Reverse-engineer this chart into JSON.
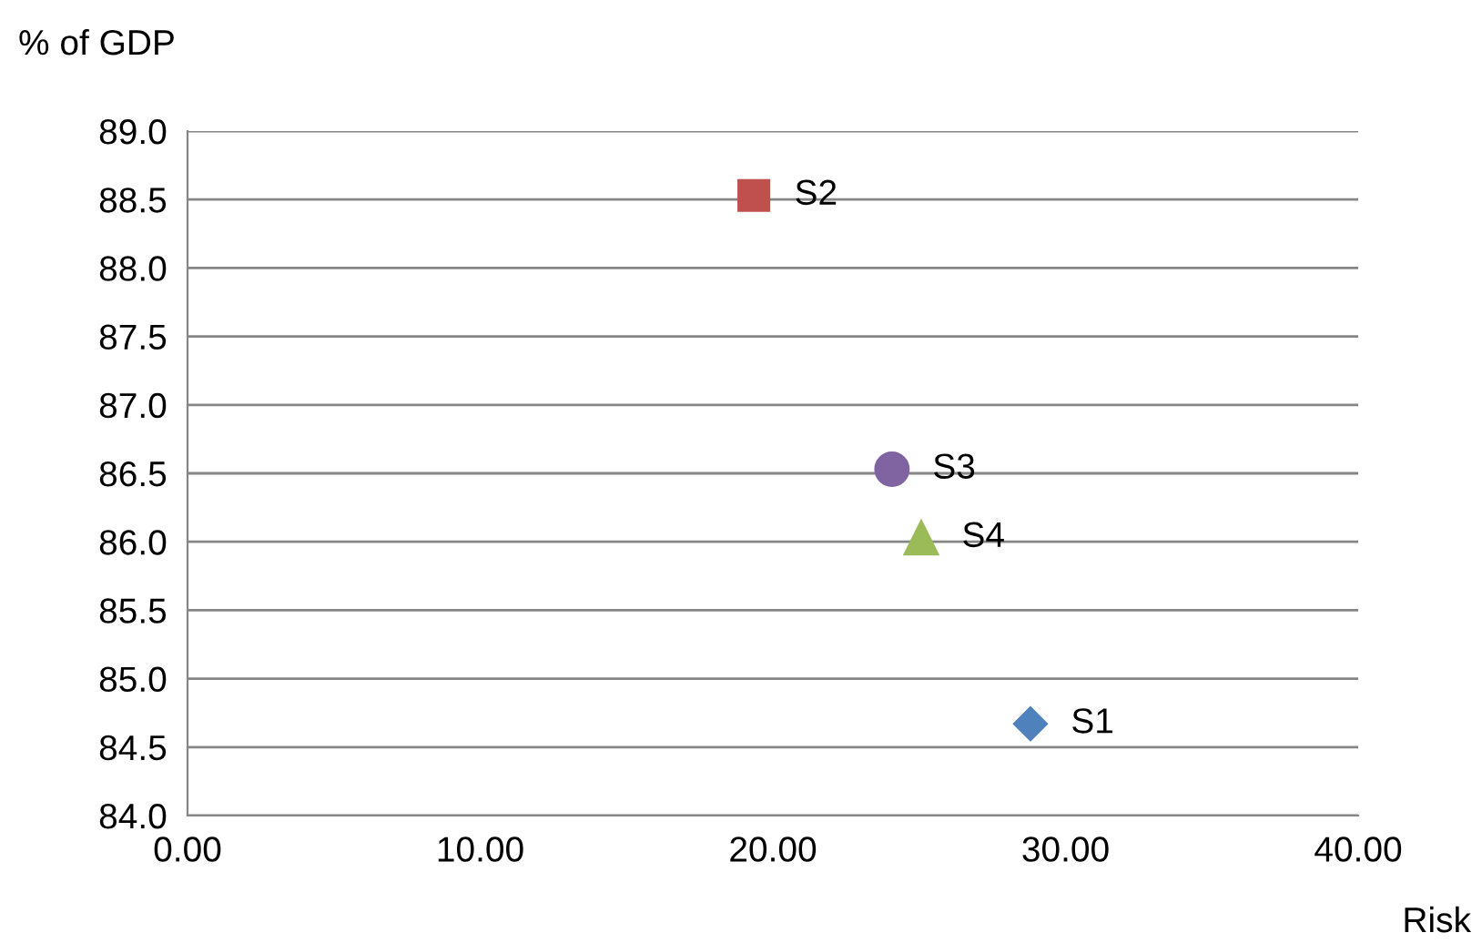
{
  "chart_data": {
    "type": "scatter",
    "xlabel": "Risk",
    "ylabel": "% of GDP",
    "grid": "y",
    "xlim": [
      0,
      40
    ],
    "ylim": [
      84,
      89
    ],
    "xticks": [
      {
        "value": 0,
        "label": "0.00"
      },
      {
        "value": 10,
        "label": "10.00"
      },
      {
        "value": 20,
        "label": "20.00"
      },
      {
        "value": 30,
        "label": "30.00"
      },
      {
        "value": 40,
        "label": "40.00"
      }
    ],
    "yticks": [
      {
        "value": 84,
        "label": "84.0"
      },
      {
        "value": 84.5,
        "label": "84.5"
      },
      {
        "value": 85,
        "label": "85.0"
      },
      {
        "value": 85.5,
        "label": "85.5"
      },
      {
        "value": 86,
        "label": "86.0"
      },
      {
        "value": 86.5,
        "label": "86.5"
      },
      {
        "value": 87,
        "label": "87.0"
      },
      {
        "value": 87.5,
        "label": "87.5"
      },
      {
        "value": 88,
        "label": "88.0"
      },
      {
        "value": 88.5,
        "label": "88.5"
      },
      {
        "value": 89,
        "label": "89.0"
      }
    ],
    "series": [
      {
        "name": "S1",
        "color": "#4f81bd",
        "marker": "diamond",
        "x": [
          28.8
        ],
        "values": [
          84.67
        ]
      },
      {
        "name": "S2",
        "color": "#c0504d",
        "marker": "square",
        "x": [
          19.35
        ],
        "values": [
          88.53
        ]
      },
      {
        "name": "S3",
        "color": "#8064a2",
        "marker": "circle",
        "x": [
          24.07
        ],
        "values": [
          86.53
        ]
      },
      {
        "name": "S4",
        "color": "#9bbb59",
        "marker": "triangle",
        "x": [
          25.07
        ],
        "values": [
          86.03
        ]
      }
    ]
  }
}
